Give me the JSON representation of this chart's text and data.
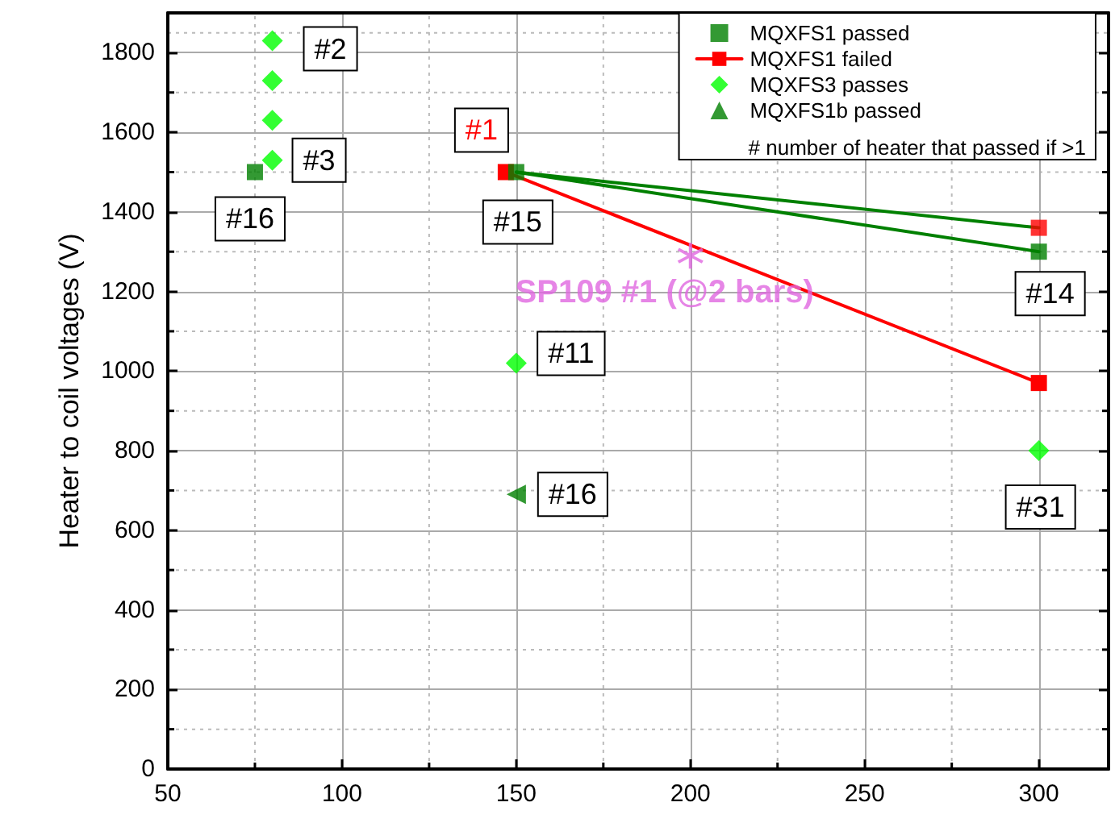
{
  "chart_data": {
    "type": "scatter",
    "ylabel": "Heater to coil voltages (V)",
    "xlim": [
      50,
      320
    ],
    "xticks": [
      50,
      100,
      150,
      200,
      250,
      300
    ],
    "ylim": [
      0,
      1900
    ],
    "yticks": [
      0,
      200,
      400,
      600,
      800,
      1000,
      1200,
      1400,
      1600,
      1800
    ],
    "grid": true,
    "legend": "top right",
    "series": [
      {
        "name": "MQXFS1 passed",
        "marker": "square",
        "color": "#008000",
        "x": [
          75,
          150,
          300
        ],
        "values": [
          1500,
          1500,
          1300
        ]
      },
      {
        "name": "MQXFS1 failed",
        "type": "line",
        "marker": "square",
        "color": "#ff0000",
        "x": [
          147,
          300
        ],
        "values": [
          1500,
          970
        ]
      },
      {
        "name": "MQXFS3 passes",
        "marker": "diamond",
        "color": "#00ff00",
        "x": [
          80,
          80,
          80,
          80,
          150,
          300
        ],
        "values": [
          1830,
          1730,
          1630,
          1530,
          1020,
          800
        ]
      },
      {
        "name": "MQXFS1b passed",
        "marker": "triangle",
        "color": "#008000",
        "x": [
          150
        ],
        "values": [
          690
        ]
      },
      {
        "marker": "star",
        "color": "#e066e0",
        "x": [
          200
        ],
        "values": [
          1290
        ],
        "value_labels": [
          "SP109 #1 (@2 bars)"
        ]
      },
      {
        "marker": "square",
        "color": "#ff0000",
        "x": [
          300
        ],
        "values": [
          1360
        ]
      },
      {
        "type": "line",
        "marker": "none",
        "color": "#008000",
        "x": [
          150,
          300
        ],
        "values": [
          1500,
          1300
        ]
      },
      {
        "type": "line",
        "marker": "none",
        "color": "#008000",
        "x": [
          150,
          300
        ],
        "values": [
          1500,
          1360
        ]
      }
    ],
    "annotations": [
      "# number of heater that passed if >1",
      {
        "text": "#2",
        "x": 80,
        "y": 1830
      },
      {
        "text": "#3",
        "x": 80,
        "y": 1530
      },
      {
        "text": "#16",
        "x": 75,
        "y": 1500
      },
      {
        "text": "#1",
        "x": 147,
        "y": 1500
      },
      {
        "text": "#15",
        "x": 150,
        "y": 1500
      },
      {
        "text": "#11",
        "x": 150,
        "y": 1020
      },
      {
        "text": "#16",
        "x": 150,
        "y": 690
      },
      {
        "text": "#14",
        "x": 300,
        "y": 1300
      },
      {
        "text": "#31",
        "x": 300,
        "y": 800
      }
    ]
  }
}
